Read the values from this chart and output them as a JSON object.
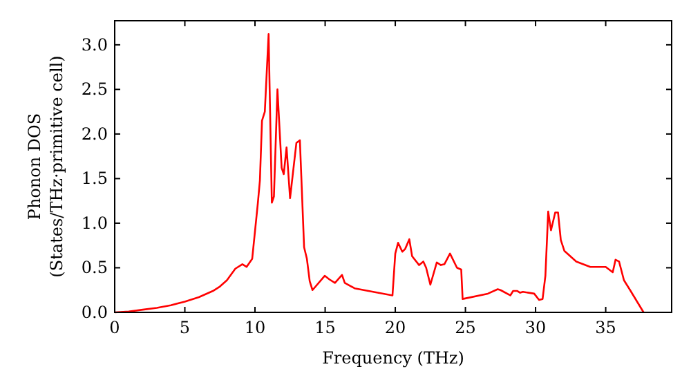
{
  "chart_data": {
    "type": "line",
    "xlabel": "Frequency (THz)",
    "ylabel": "Phonon DOS\n(States/THz·primitive cell)",
    "xlim": [
      0,
      39.7
    ],
    "ylim": [
      0,
      3.27
    ],
    "xticks": [
      0,
      5,
      10,
      15,
      20,
      25,
      30,
      35
    ],
    "yticks": [
      {
        "value": 0,
        "label": "0.0"
      },
      {
        "value": 0.5,
        "label": "0.5"
      },
      {
        "value": 1,
        "label": "1.0"
      },
      {
        "value": 1.5,
        "label": "1.5"
      },
      {
        "value": 2,
        "label": "2.0"
      },
      {
        "value": 2.5,
        "label": "2.5"
      },
      {
        "value": 3,
        "label": "3.0"
      }
    ],
    "grid": false,
    "series": [
      {
        "color": "#ff0000",
        "x": [
          0,
          1,
          2,
          3,
          4,
          5,
          6,
          7,
          7.5,
          8,
          8.6,
          9.1,
          9.4,
          9.8,
          10.2,
          10.35,
          10.5,
          10.7,
          10.97,
          11.2,
          11.35,
          11.6,
          11.9,
          12.05,
          12.25,
          12.5,
          12.95,
          13.2,
          13.5,
          13.7,
          13.9,
          14.1,
          14.97,
          15.3,
          15.7,
          16.2,
          16.4,
          17.1,
          19.8,
          20.0,
          20.2,
          20.5,
          20.7,
          21.0,
          21.2,
          21.7,
          22.0,
          22.2,
          22.5,
          22.96,
          23.25,
          23.5,
          23.9,
          24.4,
          24.7,
          24.8,
          26.6,
          27.3,
          27.5,
          28.2,
          28.4,
          28.7,
          28.9,
          29.1,
          29.9,
          30.25,
          30.5,
          30.7,
          30.9,
          31.1,
          31.4,
          31.6,
          31.8,
          32.05,
          32.9,
          33.9,
          35.0,
          35.5,
          35.7,
          35.95,
          36.3,
          36.7,
          37.7
        ],
        "values": [
          0,
          0.01,
          0.03,
          0.05,
          0.08,
          0.12,
          0.17,
          0.24,
          0.29,
          0.36,
          0.49,
          0.54,
          0.51,
          0.6,
          1.22,
          1.48,
          2.15,
          2.25,
          3.12,
          1.23,
          1.3,
          2.5,
          1.62,
          1.55,
          1.85,
          1.28,
          1.9,
          1.93,
          0.73,
          0.6,
          0.35,
          0.25,
          0.41,
          0.37,
          0.33,
          0.42,
          0.33,
          0.27,
          0.19,
          0.66,
          0.78,
          0.68,
          0.71,
          0.82,
          0.63,
          0.53,
          0.57,
          0.5,
          0.31,
          0.56,
          0.53,
          0.54,
          0.66,
          0.5,
          0.48,
          0.15,
          0.21,
          0.26,
          0.25,
          0.19,
          0.24,
          0.24,
          0.22,
          0.23,
          0.21,
          0.14,
          0.15,
          0.41,
          1.13,
          0.92,
          1.12,
          1.12,
          0.81,
          0.69,
          0.57,
          0.51,
          0.51,
          0.45,
          0.59,
          0.57,
          0.36,
          0.26,
          0
        ]
      }
    ]
  }
}
